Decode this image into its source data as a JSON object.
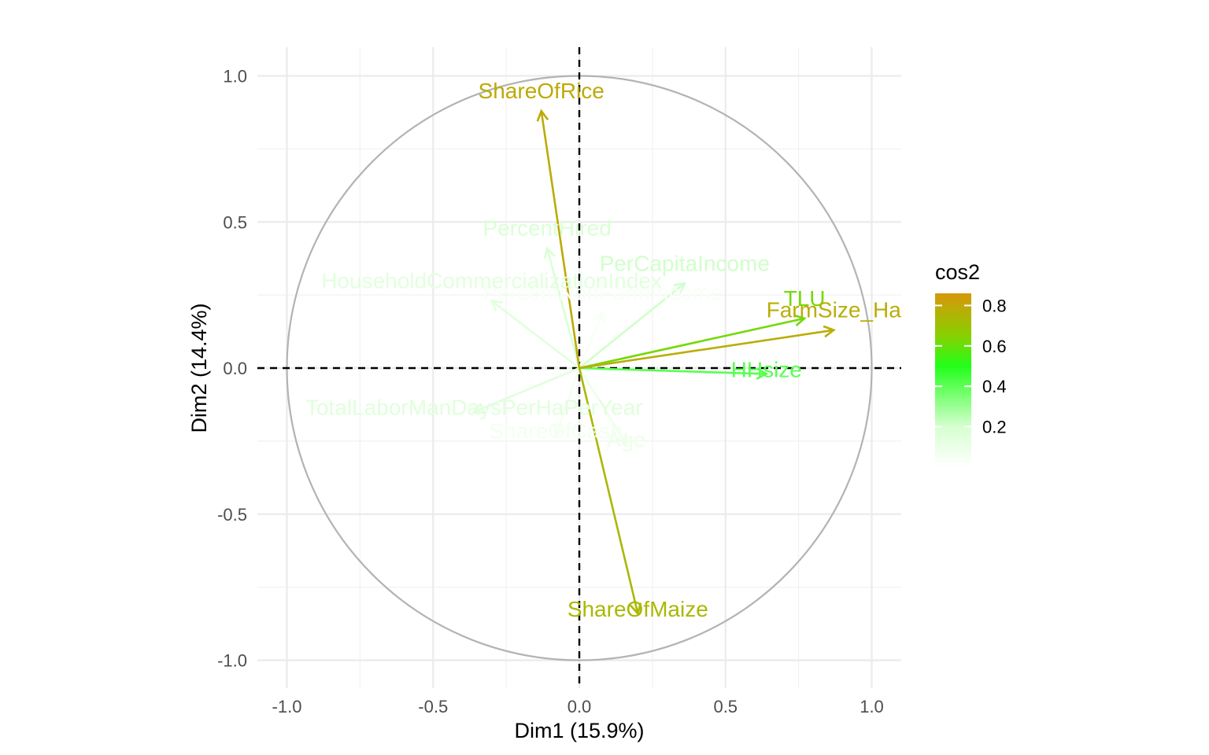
{
  "chart_data": {
    "type": "scatter",
    "subtype": "pca-variable-correlation-circle",
    "title": "",
    "xlabel": "Dim1 (15.9%)",
    "ylabel": "Dim2 (14.4%)",
    "xlim": [
      -1.0,
      1.0
    ],
    "ylim": [
      -1.0,
      1.0
    ],
    "x_ticks": [
      -1.0,
      -0.5,
      0.0,
      0.5,
      1.0
    ],
    "y_ticks": [
      -1.0,
      -0.5,
      0.0,
      0.5,
      1.0
    ],
    "x_tick_labels": [
      "-1.0",
      "-0.5",
      "0.0",
      "0.5",
      "1.0"
    ],
    "y_tick_labels": [
      "-1.0",
      "-0.5",
      "0.0",
      "0.5",
      "1.0"
    ],
    "grid": true,
    "unit_circle": true,
    "reference_lines": "dashed at x=0 and y=0",
    "color_scale": {
      "title": "cos2",
      "ticks": [
        0.2,
        0.4,
        0.6,
        0.8
      ],
      "tick_labels": [
        "0.2",
        "0.4",
        "0.6",
        "0.8"
      ],
      "range": [
        0.0,
        0.86
      ],
      "stops": [
        {
          "value": 0.0,
          "color": "#ffffff"
        },
        {
          "value": 0.2,
          "color": "#d6ffd0"
        },
        {
          "value": 0.5,
          "color": "#22ff1a"
        },
        {
          "value": 0.65,
          "color": "#88d000"
        },
        {
          "value": 0.86,
          "color": "#d8970a"
        }
      ],
      "legend_position": "right"
    },
    "variables": [
      {
        "name": "ShareOfRice",
        "x": -0.13,
        "y": 0.88,
        "cos2": 0.79
      },
      {
        "name": "PercentHired",
        "x": -0.11,
        "y": 0.41,
        "cos2": 0.18
      },
      {
        "name": "PerCapitaIncome",
        "x": 0.36,
        "y": 0.29,
        "cos2": 0.21
      },
      {
        "name": "HouseholdCommercializationIndex",
        "x": -0.3,
        "y": 0.23,
        "cos2": 0.14
      },
      {
        "name": "PercentNonFarmIncome",
        "x": 0.08,
        "y": 0.19,
        "cos2": 0.04
      },
      {
        "name": "TLU",
        "x": 0.77,
        "y": 0.17,
        "cos2": 0.62
      },
      {
        "name": "FarmSize_Ha",
        "x": 0.87,
        "y": 0.13,
        "cos2": 0.78
      },
      {
        "name": "HHsize",
        "x": 0.64,
        "y": -0.02,
        "cos2": 0.41
      },
      {
        "name": "TotalLaborManDaysPerHaPerYear",
        "x": -0.36,
        "y": -0.15,
        "cos2": 0.15
      },
      {
        "name": "ShareOfCash",
        "x": -0.08,
        "y": -0.23,
        "cos2": 0.06
      },
      {
        "name": "Age",
        "x": 0.16,
        "y": -0.26,
        "cos2": 0.09
      },
      {
        "name": "ShareOfMaize",
        "x": 0.2,
        "y": -0.84,
        "cos2": 0.74
      }
    ]
  }
}
